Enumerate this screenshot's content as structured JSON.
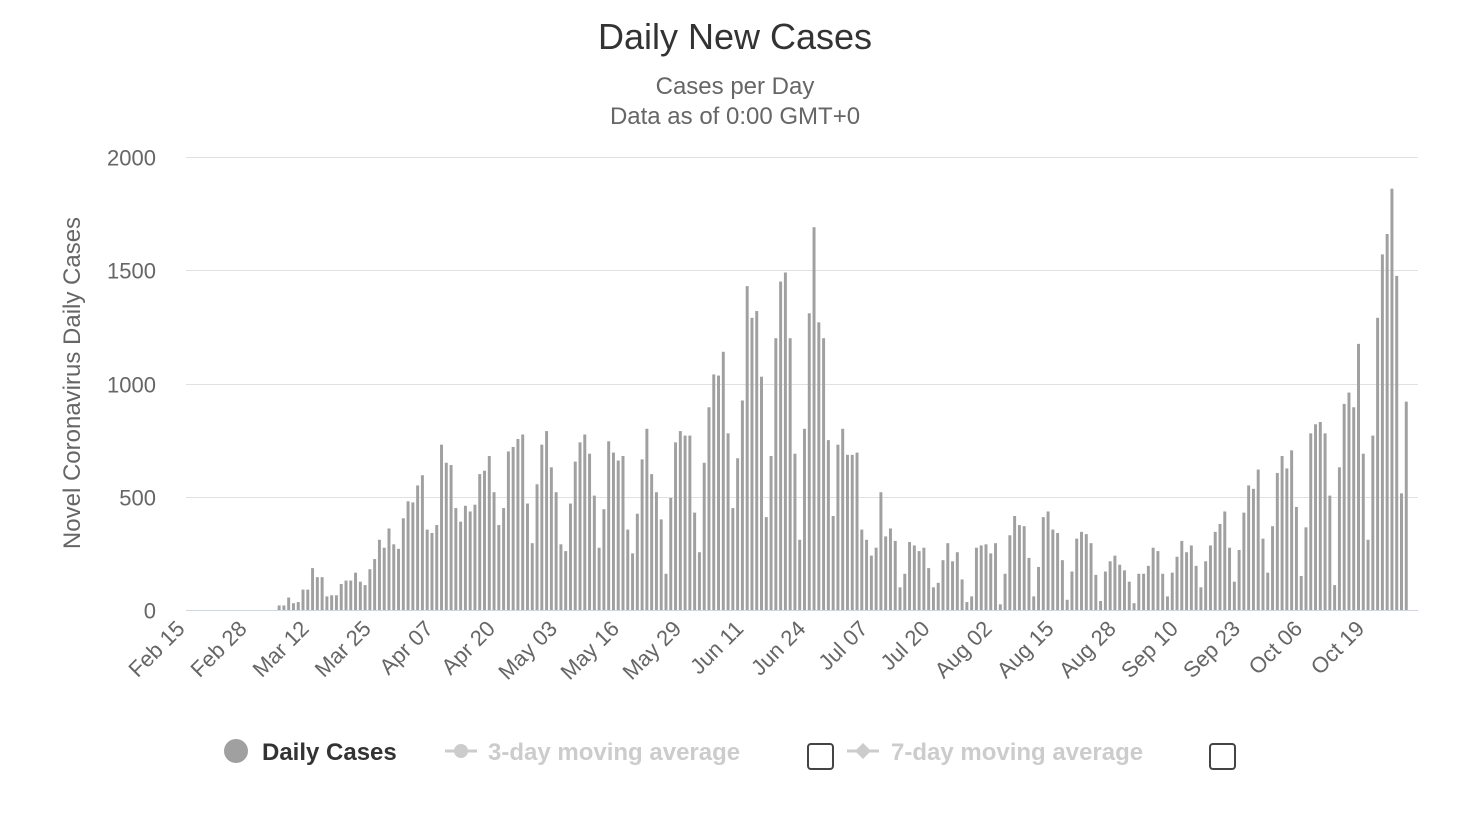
{
  "chart_data": {
    "type": "bar",
    "title": "Daily New Cases",
    "subtitle": [
      "Cases per Day",
      "Data as of 0:00 GMT+0"
    ],
    "ylabel": "Novel Coronavirus Daily Cases",
    "xlabel": "",
    "ylim": [
      0,
      2000
    ],
    "yticks": [
      0,
      500,
      1000,
      1500,
      2000
    ],
    "xticks": [
      "Feb 15",
      "Feb 28",
      "Mar 12",
      "Mar 25",
      "Apr 07",
      "Apr 20",
      "May 03",
      "May 16",
      "May 29",
      "Jun 11",
      "Jun 24",
      "Jul 07",
      "Jul 20",
      "Aug 02",
      "Aug 15",
      "Aug 28",
      "Sep 10",
      "Sep 23",
      "Oct 06",
      "Oct 19"
    ],
    "start_date": "Feb 15",
    "grid": true,
    "legend_position": "bottom",
    "colors": {
      "bar": "#a0a0a0",
      "grid": "#e0e0e0",
      "legend_active": "#333333",
      "legend_inactive": "#cccccc"
    },
    "series": [
      {
        "name": "Daily Cases",
        "values": [
          0,
          0,
          0,
          0,
          0,
          0,
          0,
          0,
          0,
          0,
          0,
          0,
          0,
          0,
          0,
          0,
          0,
          0,
          0,
          20,
          20,
          55,
          30,
          35,
          90,
          90,
          185,
          145,
          145,
          60,
          65,
          65,
          115,
          130,
          130,
          165,
          125,
          110,
          180,
          225,
          310,
          275,
          360,
          290,
          270,
          405,
          480,
          475,
          550,
          595,
          355,
          340,
          375,
          730,
          650,
          640,
          450,
          390,
          460,
          435,
          465,
          600,
          615,
          680,
          520,
          375,
          450,
          700,
          720,
          755,
          775,
          470,
          295,
          555,
          730,
          790,
          630,
          520,
          290,
          260,
          470,
          655,
          740,
          775,
          690,
          505,
          275,
          445,
          745,
          695,
          660,
          680,
          355,
          250,
          425,
          665,
          800,
          600,
          520,
          400,
          160,
          495,
          740,
          790,
          770,
          770,
          430,
          255,
          650,
          895,
          1040,
          1035,
          1140,
          780,
          450,
          670,
          925,
          1430,
          1290,
          1320,
          1030,
          410,
          680,
          1200,
          1450,
          1490,
          1200,
          690,
          310,
          800,
          1310,
          1690,
          1270,
          1200,
          750,
          415,
          730,
          800,
          685,
          685,
          695,
          355,
          310,
          240,
          275,
          520,
          325,
          360,
          305,
          100,
          160,
          300,
          285,
          260,
          275,
          185,
          100,
          120,
          220,
          295,
          215,
          255,
          135,
          35,
          60,
          275,
          285,
          290,
          250,
          295,
          25,
          160,
          330,
          415,
          375,
          370,
          230,
          60,
          190,
          410,
          435,
          355,
          340,
          220,
          45,
          170,
          315,
          345,
          335,
          295,
          155,
          40,
          170,
          215,
          240,
          200,
          175,
          125,
          30,
          160,
          160,
          195,
          275,
          260,
          160,
          60,
          165,
          235,
          305,
          255,
          285,
          195,
          100,
          215,
          285,
          345,
          380,
          435,
          275,
          125,
          265,
          430,
          550,
          535,
          620,
          315,
          165,
          370,
          605,
          680,
          625,
          705,
          455,
          150,
          365,
          780,
          820,
          830,
          780,
          505,
          110,
          630,
          910,
          960,
          895,
          1175,
          690,
          310,
          770,
          1290,
          1570,
          1660,
          1860,
          1475,
          515,
          920
        ]
      },
      {
        "name": "3-day moving average"
      },
      {
        "name": "7-day moving average"
      }
    ]
  }
}
